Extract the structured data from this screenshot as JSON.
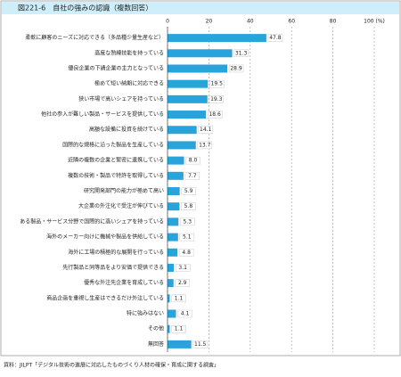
{
  "chart_data": {
    "type": "bar",
    "orientation": "horizontal",
    "title": "図221-6　自社の強みの認識（複数回答）",
    "categories": [
      "柔軟に顧客のニーズに対応できる（多品種少量生産など）",
      "高度な熟練技能を持っている",
      "優良企業の下請企業の主力となっている",
      "極めて短い納期に対応できる",
      "狭い市場で高いシェアを持っている",
      "他社の参入が難しい製品・サービスを提供している",
      "高額な設備に投資を続けている",
      "国際的な規格に沿った製品を生産している",
      "近隣の複数の企業と緊密に連携している",
      "複数の技術・製品で特許を取得している",
      "研究開発部門の能力が極めて高い",
      "大企業の外注化で受注が伸びている",
      "ある製品・サービス分野で国際的に高いシェアを持っている",
      "海外のメーカー向けに機械や製品を供給している",
      "海外に工場の積極的な展開を行っている",
      "先行製品と同等品をより安価で提供できる",
      "優秀な外注先企業を育成している",
      "商品企画を重視し生産はできるだけ外注している",
      "特に強みはない",
      "その他",
      "無回答"
    ],
    "values": [
      47.8,
      31.3,
      28.9,
      19.5,
      19.3,
      18.6,
      14.1,
      13.7,
      8.0,
      7.7,
      5.9,
      5.8,
      5.3,
      5.1,
      4.8,
      3.1,
      2.9,
      1.1,
      4.1,
      1.1,
      11.5
    ],
    "value_labels": [
      "47.8",
      "31.3",
      "28.9",
      "19.5",
      "19.3",
      "18.6",
      "14.1",
      "13.7",
      "8.0",
      "7.7",
      "5.9",
      "5.8",
      "5.3",
      "5.1",
      "4.8",
      "3.1",
      "2.9",
      "1.1",
      "4.1",
      "1.1",
      "11.5"
    ],
    "color": "#29a3dc",
    "xlim": [
      0,
      100
    ],
    "xticks": [
      0,
      20,
      40,
      60,
      80,
      {
        "value": 100,
        "label": "100 (%)"
      }
    ],
    "grid": true,
    "source": "資料：JILPT「デジタル技術の進展に対応したものづくり人材の確保・育成に関する調査」"
  }
}
